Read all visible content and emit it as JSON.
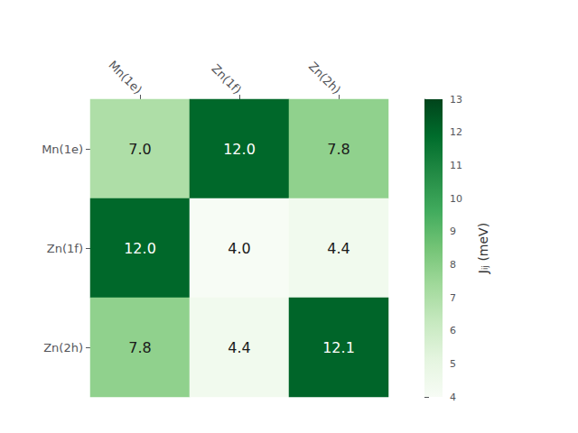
{
  "chart_data": {
    "type": "heatmap",
    "categories": [
      "Mn(1e)",
      "Zn(1f)",
      "Zn(2h)"
    ],
    "matrix": [
      [
        7.0,
        12.0,
        7.8
      ],
      [
        12.0,
        4.0,
        4.4
      ],
      [
        7.8,
        4.4,
        12.1
      ]
    ],
    "value_labels": [
      [
        "7.0",
        "12.0",
        "7.8"
      ],
      [
        "12.0",
        "4.0",
        "4.4"
      ],
      [
        "7.8",
        "4.4",
        "12.1"
      ]
    ],
    "data_labels": true,
    "grid": false,
    "colorbar_label": "Jᵢⱼ (meV)",
    "colorbar_range": [
      4,
      13
    ],
    "colorbar_ticks": [
      4,
      5,
      6,
      7,
      8,
      9,
      10,
      11,
      12,
      13
    ]
  }
}
